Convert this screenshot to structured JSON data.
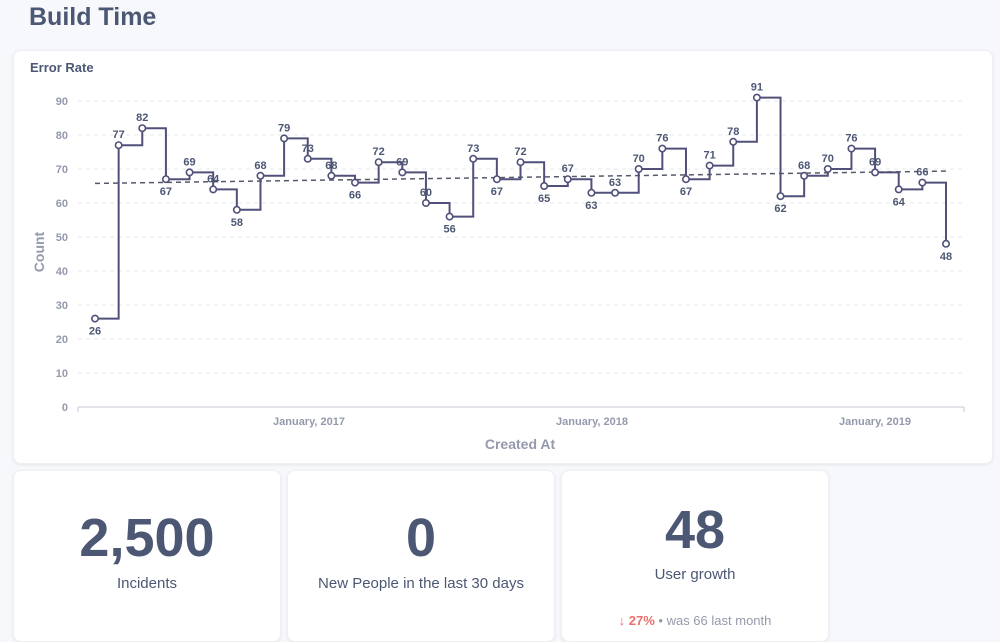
{
  "dashboard": {
    "title": "Build Time"
  },
  "chart_card": {
    "title": "Error Rate"
  },
  "chart_data": {
    "type": "line",
    "step": true,
    "title": "Error Rate",
    "xlabel": "Created At",
    "ylabel": "Count",
    "ylim": [
      0,
      90
    ],
    "y_ticks": [
      0,
      10,
      20,
      30,
      40,
      50,
      60,
      70,
      80,
      90
    ],
    "x_ticks": [
      "January, 2017",
      "January, 2018",
      "January, 2019"
    ],
    "grid": "horizontal dashed",
    "trendline": true,
    "series": [
      {
        "values": [
          26,
          77,
          82,
          67,
          69,
          64,
          58,
          68,
          79,
          73,
          68,
          66,
          72,
          69,
          60,
          56,
          73,
          67,
          72,
          65,
          67,
          63,
          63,
          70,
          76,
          67,
          71,
          78,
          91,
          62,
          68,
          70,
          76,
          69,
          64,
          66,
          48
        ]
      }
    ],
    "colors": {
      "line": "#50507a",
      "trend": "#555a6a",
      "grid": "#e6e8ee"
    }
  },
  "scalars": [
    {
      "value": "2,500",
      "label": "Incidents"
    },
    {
      "value": "0",
      "label": "New People in the last 30 days"
    },
    {
      "value": "48",
      "label": "User growth",
      "trend": {
        "arrow": "↓",
        "change": "27%",
        "separator": "•",
        "was": "was 66",
        "period": "last month"
      }
    }
  ]
}
